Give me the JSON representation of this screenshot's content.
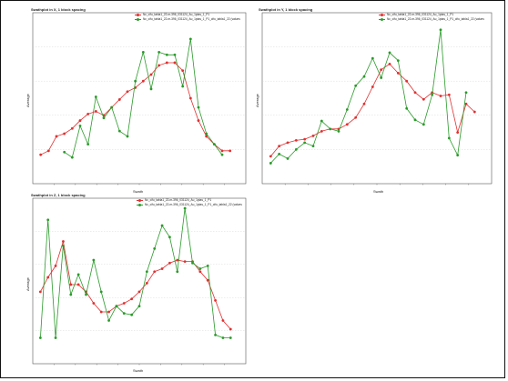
{
  "chart_data": [
    {
      "type": "line",
      "title": "Swathplot in X, 1 block spacing",
      "xlabel": "Swath",
      "ylabel": "Average",
      "legend_position": "top-right",
      "grid": true,
      "series": [
        {
          "name": "Nc_cifu_tabla1_22-m-396_031124_Au_1ptas_1_P1",
          "color": "#e03030",
          "x": [
            1,
            2,
            3,
            4,
            5,
            6,
            7,
            8,
            9,
            10,
            11,
            12,
            13,
            14,
            15,
            16,
            17,
            18,
            19,
            20,
            21,
            22,
            23,
            24,
            25
          ],
          "y": [
            0.22,
            0.25,
            0.36,
            0.38,
            0.42,
            0.48,
            0.53,
            0.55,
            0.52,
            0.58,
            0.64,
            0.7,
            0.73,
            0.78,
            0.83,
            0.9,
            0.92,
            0.92,
            0.86,
            0.65,
            0.48,
            0.36,
            0.3,
            0.25,
            0.25
          ]
        },
        {
          "name": "Nc_cifu_tabla1_22-m-396_031124_Au_1ptas_1_P1_cifu_tabla1_22 (values",
          "color": "#2a9a2a",
          "x": [
            4,
            5,
            6,
            7,
            8,
            9,
            10,
            11,
            12,
            13,
            14,
            15,
            16,
            17,
            18,
            19,
            20,
            21,
            22,
            23,
            24
          ],
          "y": [
            0.24,
            0.2,
            0.44,
            0.3,
            0.66,
            0.5,
            0.58,
            0.4,
            0.36,
            0.78,
            1.0,
            0.72,
            1.0,
            0.98,
            0.98,
            0.74,
            1.1,
            0.58,
            0.38,
            0.3,
            0.22
          ]
        }
      ]
    },
    {
      "type": "line",
      "title": "Swathplot in Y, 1 block spacing",
      "xlabel": "Swath",
      "ylabel": "Average",
      "legend_position": "top-right",
      "grid": true,
      "series": [
        {
          "name": "Nc_cifu_tabla1_22-m-396_031124_Au_1ptas_1_P1",
          "color": "#e03030",
          "x": [
            1,
            2,
            3,
            4,
            5,
            6,
            7,
            8,
            9,
            10,
            11,
            12,
            13,
            14,
            15,
            16,
            17,
            18,
            19,
            20,
            21,
            22,
            23,
            24,
            25
          ],
          "y": [
            0.24,
            0.33,
            0.36,
            0.38,
            0.39,
            0.42,
            0.46,
            0.48,
            0.48,
            0.52,
            0.58,
            0.7,
            0.85,
            1.0,
            1.05,
            0.97,
            0.9,
            0.8,
            0.74,
            0.8,
            0.77,
            0.78,
            0.45,
            0.7,
            0.63
          ]
        },
        {
          "name": "Nc_cifu_tabla1_22-m-396_031124_Au_1ptas_1_P1_cifu_tabla1_22 (values",
          "color": "#2a9a2a",
          "x": [
            1,
            2,
            3,
            4,
            5,
            6,
            7,
            8,
            9,
            10,
            11,
            12,
            13,
            14,
            15,
            16,
            17,
            18,
            19,
            20,
            21,
            22,
            23,
            24
          ],
          "y": [
            0.18,
            0.26,
            0.22,
            0.3,
            0.36,
            0.33,
            0.55,
            0.48,
            0.46,
            0.65,
            0.86,
            0.94,
            1.1,
            0.93,
            1.15,
            1.08,
            0.66,
            0.56,
            0.52,
            0.78,
            1.35,
            0.4,
            0.25,
            0.8
          ]
        }
      ]
    },
    {
      "type": "line",
      "title": "Swathplot in Z, 1 block spacing",
      "xlabel": "Swath",
      "ylabel": "Average",
      "legend_position": "top-right",
      "grid": true,
      "series": [
        {
          "name": "Nc_cifu_tabla1_22-m-396_031124_Au_1ptas_1_P1",
          "color": "#e03030",
          "x": [
            1,
            2,
            3,
            4,
            5,
            6,
            7,
            8,
            9,
            10,
            11,
            12,
            13,
            14,
            15,
            16,
            17,
            18,
            19,
            20,
            21,
            22,
            23,
            24,
            25,
            26
          ],
          "y": [
            0.5,
            0.6,
            0.68,
            0.85,
            0.55,
            0.55,
            0.5,
            0.42,
            0.36,
            0.36,
            0.4,
            0.42,
            0.45,
            0.5,
            0.56,
            0.64,
            0.66,
            0.7,
            0.72,
            0.71,
            0.71,
            0.64,
            0.58,
            0.44,
            0.3,
            0.24
          ]
        },
        {
          "name": "Nc_cifu_tabla1_22-m-396_031124_Au_1ptas_1_P1_cifu_tabla1_22 (values",
          "color": "#2a9a2a",
          "x": [
            1,
            2,
            3,
            4,
            5,
            6,
            7,
            8,
            9,
            10,
            11,
            12,
            13,
            14,
            15,
            16,
            17,
            18,
            19,
            20,
            21,
            22,
            23,
            24,
            25,
            26
          ],
          "y": [
            0.18,
            1.0,
            0.18,
            0.82,
            0.48,
            0.62,
            0.48,
            0.72,
            0.5,
            0.3,
            0.4,
            0.35,
            0.34,
            0.4,
            0.64,
            0.8,
            0.96,
            0.88,
            0.64,
            1.08,
            0.7,
            0.66,
            0.68,
            0.2,
            0.18,
            0.18
          ]
        }
      ]
    }
  ]
}
